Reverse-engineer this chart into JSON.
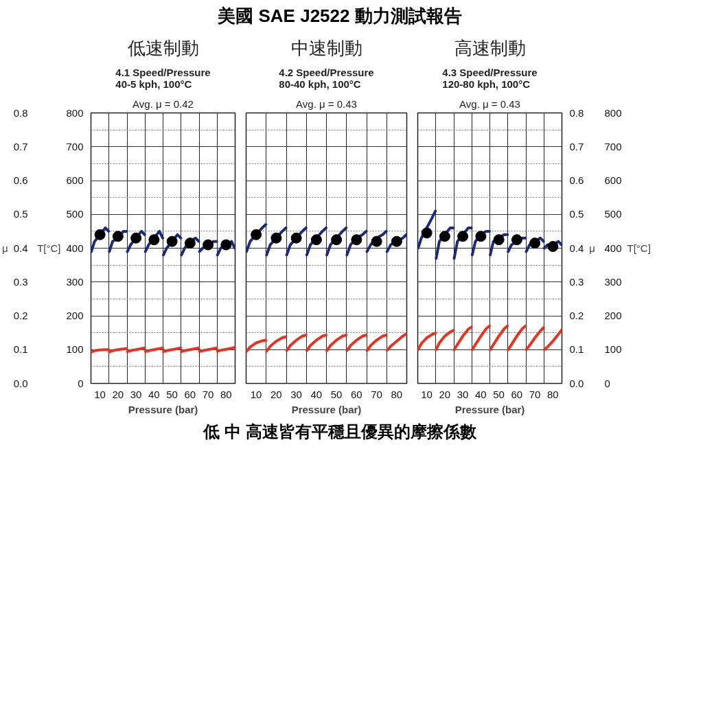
{
  "chart_data": [
    {
      "type": "other",
      "title": "美國 SAE J2522 動力測試報告",
      "annotations": [
        "低 中 高速皆有平穩且優異的摩擦係數"
      ]
    },
    {
      "type": "line",
      "title": "低速制動",
      "subtitle": "4.1 Speed/Pressure\n40-5 kph, 100°C",
      "annotations": [
        "Avg. μ = 0.42"
      ],
      "xlabel": "Pressure (bar)",
      "ylabel": "μ",
      "y2label": "T[°C]",
      "xlim": [
        5,
        85
      ],
      "xticks": [
        10,
        20,
        30,
        40,
        50,
        60,
        70,
        80,
        {
          "value": 15,
          "label": null
        },
        {
          "value": 25,
          "label": null
        },
        {
          "value": 35,
          "label": null
        },
        {
          "value": 45,
          "label": null
        },
        {
          "value": 55,
          "label": null
        },
        {
          "value": 65,
          "label": null
        },
        {
          "value": 75,
          "label": null
        }
      ],
      "ylim": [
        0,
        0.8
      ],
      "yticks": [
        {
          "value": 0,
          "label": "0.0"
        },
        0.1,
        0.2,
        0.3,
        0.4,
        0.5,
        0.6,
        0.7,
        0.8,
        {
          "value": 0.05,
          "label": null
        },
        {
          "value": 0.15,
          "label": null
        },
        {
          "value": 0.25,
          "label": null
        },
        {
          "value": 0.35,
          "label": null
        },
        {
          "value": 0.45,
          "label": null
        },
        {
          "value": 0.55,
          "label": null
        },
        {
          "value": 0.65,
          "label": null
        },
        {
          "value": 0.75,
          "label": null
        }
      ],
      "y2lim": [
        0,
        800
      ],
      "y2ticks": [
        0,
        100,
        200,
        300,
        400,
        500,
        600,
        700,
        800
      ],
      "grid": true,
      "series": [
        {
          "type": "line",
          "color": "#1c2a7e",
          "x": [
            5.2,
            7,
            10,
            13,
            14.8,
            15,
            15.2,
            17,
            20,
            23,
            24.8,
            25,
            25.2,
            27,
            30,
            33,
            34.8,
            35,
            35.2,
            37,
            40,
            43,
            44.8,
            45,
            45.2,
            47,
            50,
            53,
            54.8,
            55,
            55.2,
            57,
            60,
            63,
            64.8,
            65,
            65.2,
            67,
            70,
            73,
            74.8,
            75,
            75.2,
            77,
            80,
            83,
            84.8
          ],
          "values": [
            0.39,
            0.42,
            0.44,
            0.46,
            0.45,
            null,
            0.39,
            0.42,
            0.43,
            0.45,
            0.45,
            null,
            0.39,
            0.41,
            0.43,
            0.45,
            0.44,
            null,
            0.39,
            0.41,
            0.43,
            0.45,
            0.43,
            null,
            0.38,
            0.4,
            0.42,
            0.44,
            0.43,
            null,
            0.38,
            0.4,
            0.42,
            0.43,
            0.42,
            null,
            0.39,
            0.4,
            0.41,
            0.42,
            0.42,
            null,
            0.38,
            0.4,
            0.41,
            0.42,
            0.4
          ]
        },
        {
          "type": "line",
          "color": "#e8341f",
          "axis": "y2",
          "x": [
            5.2,
            7,
            10,
            13,
            14.8,
            15,
            15.2,
            17,
            20,
            23,
            24.8,
            25,
            25.2,
            27,
            30,
            33,
            34.8,
            35,
            35.2,
            37,
            40,
            43,
            44.8,
            45,
            45.2,
            47,
            50,
            53,
            54.8,
            55,
            55.2,
            57,
            60,
            63,
            64.8,
            65,
            65.2,
            67,
            70,
            73,
            74.8,
            75,
            75.2,
            77,
            80,
            83,
            84.8
          ],
          "values": [
            93,
            97,
            99,
            100,
            100,
            null,
            93,
            97,
            100,
            102,
            103,
            null,
            94,
            97,
            100,
            103,
            105,
            null,
            94,
            97,
            100,
            103,
            105,
            null,
            94,
            97,
            100,
            103,
            105,
            null,
            94,
            97,
            100,
            103,
            105,
            null,
            94,
            97,
            100,
            103,
            105,
            null,
            95,
            98,
            101,
            104,
            107
          ]
        },
        {
          "type": "scatter",
          "color": "#000000",
          "marker": "circle",
          "x": [
            10,
            20,
            30,
            40,
            50,
            60,
            70,
            80
          ],
          "values": [
            0.44,
            0.435,
            0.43,
            0.425,
            0.42,
            0.415,
            0.41,
            0.41
          ]
        }
      ]
    },
    {
      "type": "line",
      "title": "中速制動",
      "subtitle": "4.2 Speed/Pressure\n80-40 kph, 100°C",
      "annotations": [
        "Avg. μ = 0.43"
      ],
      "xlabel": "Pressure (bar)",
      "tick_labels": "x",
      "xlim": [
        5,
        85
      ],
      "xticks": [
        10,
        20,
        30,
        40,
        50,
        60,
        70,
        80,
        {
          "value": 15,
          "label": null
        },
        {
          "value": 25,
          "label": null
        },
        {
          "value": 35,
          "label": null
        },
        {
          "value": 45,
          "label": null
        },
        {
          "value": 55,
          "label": null
        },
        {
          "value": 65,
          "label": null
        },
        {
          "value": 75,
          "label": null
        }
      ],
      "ylim": [
        0,
        0.8
      ],
      "yticks": [
        0,
        0.1,
        0.2,
        0.3,
        0.4,
        0.5,
        0.6,
        0.7,
        0.8,
        {
          "value": 0.05,
          "label": null
        },
        {
          "value": 0.15,
          "label": null
        },
        {
          "value": 0.25,
          "label": null
        },
        {
          "value": 0.35,
          "label": null
        },
        {
          "value": 0.45,
          "label": null
        },
        {
          "value": 0.55,
          "label": null
        },
        {
          "value": 0.65,
          "label": null
        },
        {
          "value": 0.75,
          "label": null
        }
      ],
      "y2lim": [
        0,
        800
      ],
      "grid": true,
      "series": [
        {
          "type": "line",
          "color": "#1c2a7e",
          "x": [
            5.2,
            7,
            10,
            13,
            14.8,
            15,
            15.2,
            17,
            20,
            23,
            24.8,
            25,
            25.2,
            27,
            30,
            33,
            34.8,
            35,
            35.2,
            37,
            40,
            43,
            44.8,
            45,
            45.2,
            47,
            50,
            53,
            54.8,
            55,
            55.2,
            57,
            60,
            63,
            64.8,
            65,
            65.2,
            67,
            70,
            73,
            74.8,
            75,
            75.2,
            77,
            80,
            83,
            84.8
          ],
          "values": [
            0.39,
            0.42,
            0.44,
            0.46,
            0.47,
            null,
            0.38,
            0.41,
            0.43,
            0.45,
            0.46,
            null,
            0.38,
            0.41,
            0.43,
            0.45,
            0.46,
            null,
            0.38,
            0.41,
            0.43,
            0.45,
            0.46,
            null,
            0.38,
            0.41,
            0.43,
            0.45,
            0.46,
            null,
            0.38,
            0.41,
            0.43,
            0.44,
            0.45,
            null,
            0.39,
            0.41,
            0.43,
            0.44,
            0.45,
            null,
            0.39,
            0.41,
            0.42,
            0.43,
            0.44
          ]
        },
        {
          "type": "line",
          "color": "#e8341f",
          "axis": "y2",
          "x": [
            5.2,
            7,
            10,
            13,
            14.8,
            15,
            15.2,
            17,
            20,
            23,
            24.8,
            25,
            25.2,
            27,
            30,
            33,
            34.8,
            35,
            35.2,
            37,
            40,
            43,
            44.8,
            45,
            45.2,
            47,
            50,
            53,
            54.8,
            55,
            55.2,
            57,
            60,
            63,
            64.8,
            65,
            65.2,
            67,
            70,
            73,
            74.8,
            75,
            75.2,
            77,
            80,
            83,
            84.8
          ],
          "values": [
            95,
            108,
            120,
            126,
            128,
            null,
            95,
            110,
            125,
            135,
            138,
            null,
            97,
            112,
            128,
            140,
            143,
            null,
            97,
            112,
            128,
            140,
            143,
            null,
            97,
            112,
            128,
            140,
            143,
            null,
            97,
            112,
            128,
            140,
            143,
            null,
            97,
            112,
            128,
            140,
            143,
            null,
            98,
            110,
            125,
            140,
            147
          ]
        },
        {
          "type": "scatter",
          "color": "#000000",
          "marker": "circle",
          "x": [
            10,
            20,
            30,
            40,
            50,
            60,
            70,
            80
          ],
          "values": [
            0.44,
            0.43,
            0.43,
            0.425,
            0.425,
            0.425,
            0.42,
            0.42
          ]
        }
      ]
    },
    {
      "type": "line",
      "title": "高速制動",
      "subtitle": "4.3 Speed/Pressure\n120-80 kph, 100°C",
      "annotations": [
        "Avg. μ = 0.43"
      ],
      "xlabel": "Pressure (bar)",
      "ylabel": "μ",
      "y2label": "T[°C]",
      "xlim": [
        5,
        85
      ],
      "xticks": [
        10,
        20,
        30,
        40,
        50,
        60,
        70,
        80,
        {
          "value": 15,
          "label": null
        },
        {
          "value": 25,
          "label": null
        },
        {
          "value": 35,
          "label": null
        },
        {
          "value": 45,
          "label": null
        },
        {
          "value": 55,
          "label": null
        },
        {
          "value": 65,
          "label": null
        },
        {
          "value": 75,
          "label": null
        }
      ],
      "ylim": [
        0,
        0.8
      ],
      "yticks": [
        {
          "value": 0,
          "label": "0.0"
        },
        0.1,
        0.2,
        0.3,
        0.4,
        0.5,
        0.6,
        0.7,
        0.8,
        {
          "value": 0.05,
          "label": null
        },
        {
          "value": 0.15,
          "label": null
        },
        {
          "value": 0.25,
          "label": null
        },
        {
          "value": 0.35,
          "label": null
        },
        {
          "value": 0.45,
          "label": null
        },
        {
          "value": 0.55,
          "label": null
        },
        {
          "value": 0.65,
          "label": null
        },
        {
          "value": 0.75,
          "label": null
        }
      ],
      "y2lim": [
        0,
        800
      ],
      "y2ticks": [
        0,
        100,
        200,
        300,
        400,
        500,
        600,
        700,
        800
      ],
      "grid": true,
      "series": [
        {
          "type": "line",
          "color": "#1c2a7e",
          "x": [
            5.2,
            7,
            10,
            13,
            14.8,
            15,
            15.2,
            17,
            20,
            23,
            24.8,
            25,
            25.2,
            27,
            30,
            33,
            34.8,
            35,
            35.2,
            37,
            40,
            43,
            44.8,
            45,
            45.2,
            47,
            50,
            53,
            54.8,
            55,
            55.2,
            57,
            60,
            63,
            64.8,
            65,
            65.2,
            67,
            70,
            73,
            74.8,
            75,
            75.2,
            77,
            80,
            83,
            84.8
          ],
          "values": [
            0.4,
            0.43,
            0.46,
            0.49,
            0.51,
            null,
            0.37,
            0.42,
            0.44,
            0.46,
            0.46,
            null,
            0.37,
            0.42,
            0.44,
            0.46,
            0.46,
            null,
            0.38,
            0.42,
            0.44,
            0.45,
            0.45,
            null,
            0.38,
            0.42,
            0.43,
            0.44,
            0.44,
            null,
            0.39,
            0.41,
            0.42,
            0.43,
            0.43,
            null,
            0.39,
            0.41,
            0.42,
            0.43,
            0.42,
            null,
            0.4,
            0.41,
            0.41,
            0.42,
            0.41
          ]
        },
        {
          "type": "line",
          "color": "#e8341f",
          "axis": "y2",
          "x": [
            5.2,
            7,
            10,
            13,
            14.8,
            15,
            15.2,
            17,
            20,
            23,
            24.8,
            25,
            25.2,
            27,
            30,
            33,
            34.8,
            35,
            35.2,
            37,
            40,
            43,
            44.8,
            45,
            45.2,
            47,
            50,
            53,
            54.8,
            55,
            55.2,
            57,
            60,
            63,
            64.8,
            65,
            65.2,
            67,
            70,
            73,
            74.8,
            75,
            75.2,
            77,
            80,
            83,
            84.8
          ],
          "values": [
            100,
            118,
            135,
            145,
            149,
            null,
            100,
            120,
            140,
            152,
            157,
            null,
            100,
            115,
            140,
            160,
            167,
            null,
            100,
            115,
            140,
            162,
            170,
            null,
            100,
            115,
            140,
            162,
            170,
            null,
            100,
            115,
            140,
            162,
            170,
            null,
            100,
            112,
            135,
            155,
            165,
            null,
            100,
            108,
            125,
            145,
            158
          ]
        },
        {
          "type": "scatter",
          "color": "#000000",
          "marker": "circle",
          "x": [
            10,
            20,
            30,
            40,
            50,
            60,
            70,
            80
          ],
          "values": [
            0.445,
            0.435,
            0.435,
            0.435,
            0.425,
            0.425,
            0.415,
            0.405
          ]
        }
      ]
    }
  ]
}
